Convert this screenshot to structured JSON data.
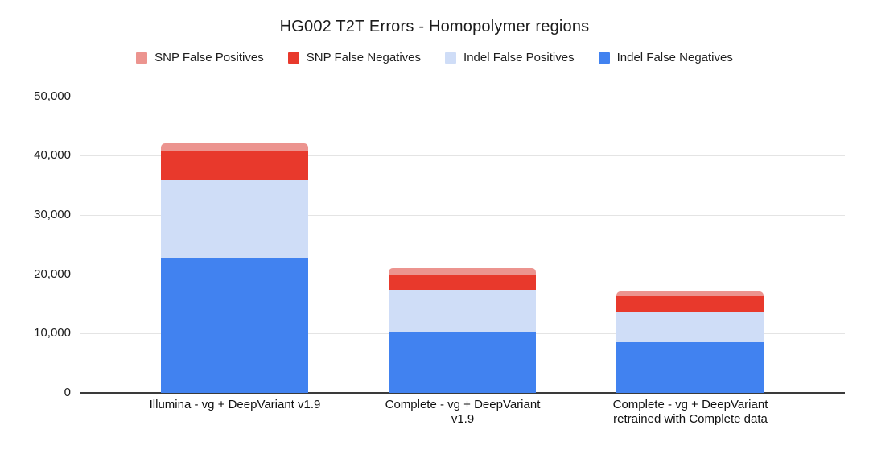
{
  "chart_data": {
    "type": "bar",
    "variant": "stacked-vertical",
    "title": "HG002 T2T Errors - Homopolymer regions",
    "categories": [
      "Illumina - vg + DeepVariant v1.9",
      "Complete - vg + DeepVariant v1.9",
      "Complete - vg + DeepVariant retrained with Complete data"
    ],
    "category_label_lines": [
      [
        "Illumina - vg + DeepVariant v1.9"
      ],
      [
        "Complete - vg + DeepVariant",
        "v1.9"
      ],
      [
        "Complete - vg + DeepVariant",
        "retrained with Complete data"
      ]
    ],
    "series": [
      {
        "name": "SNP False Positives",
        "color": "#EC948F",
        "values": [
          1400,
          1100,
          800
        ]
      },
      {
        "name": "SNP False Negatives",
        "color": "#E8392C",
        "values": [
          4700,
          2500,
          2600
        ]
      },
      {
        "name": "Indel False Positives",
        "color": "#CFDDF7",
        "values": [
          13300,
          7200,
          5200
        ]
      },
      {
        "name": "Indel False Negatives",
        "color": "#4182F0",
        "values": [
          22700,
          10200,
          8500
        ]
      }
    ],
    "stack_order": "series listed top-to-bottom within each bar; legend order matches",
    "totals": [
      42100,
      21000,
      17100
    ],
    "ylim": [
      0,
      50000
    ],
    "ytick_interval": 10000,
    "yticks": [
      "0",
      "10,000",
      "20,000",
      "30,000",
      "40,000",
      "50,000"
    ],
    "grid": true,
    "legend_position": "top",
    "xlabel": "",
    "ylabel": "",
    "colors": {
      "gridline": "#e4e4e4",
      "axis_line": "#3a3a3a",
      "text": "#1c1c1c",
      "background": "#ffffff"
    }
  }
}
